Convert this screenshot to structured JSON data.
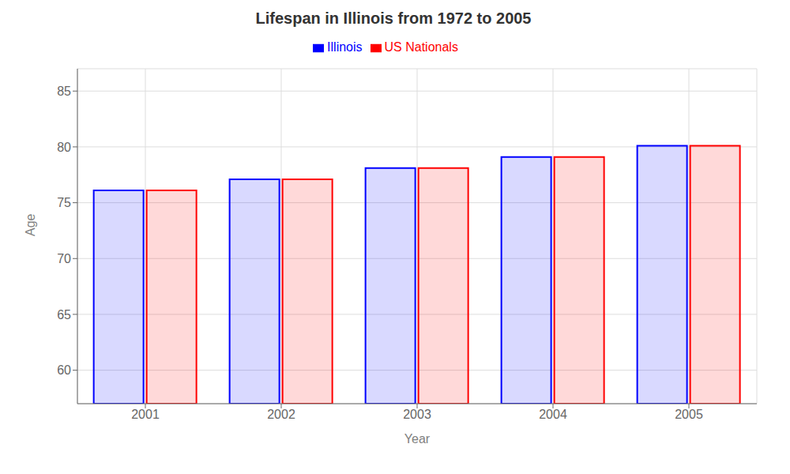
{
  "chart_data": {
    "type": "bar",
    "title": "Lifespan in Illinois from 1972 to 2005",
    "x_label": "Year",
    "y_label": "Age",
    "categories": [
      "2001",
      "2002",
      "2003",
      "2004",
      "2005"
    ],
    "series": [
      {
        "name": "Illinois",
        "color": "#0000ff",
        "values": [
          76.1,
          77.1,
          78.1,
          79.1,
          80.1
        ]
      },
      {
        "name": "US Nationals",
        "color": "#ff0000",
        "values": [
          76.1,
          77.1,
          78.1,
          79.1,
          80.1
        ]
      }
    ],
    "ylim": [
      57,
      87
    ],
    "yticks": [
      60,
      65,
      70,
      75,
      80,
      85
    ],
    "grid": true,
    "legend": "top"
  }
}
